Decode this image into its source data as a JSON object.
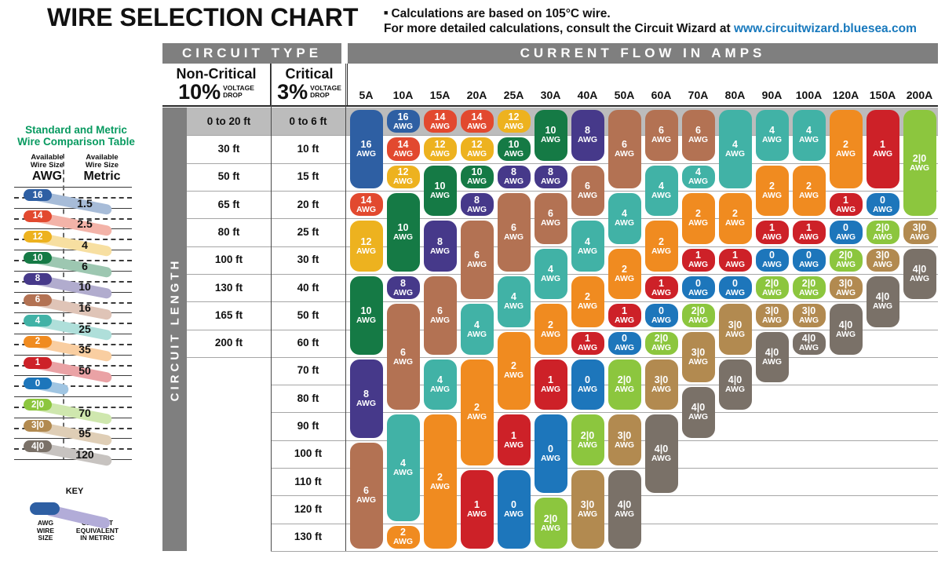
{
  "title": "WIRE SELECTION CHART",
  "notes": {
    "bullet": "■",
    "line1": "Calculations are based on 105°C wire.",
    "line2_prefix": "For more detailed calculations, consult the Circuit Wizard at ",
    "link_text": "www.circuitwizard.bluesea.com",
    "link_color": "#1879bd"
  },
  "headers": {
    "circuit_type": "CIRCUIT TYPE",
    "current_flow": "CURRENT FLOW IN AMPS",
    "circuit_length": "CIRCUIT LENGTH",
    "non_critical": {
      "title": "Non-Critical",
      "pct": "10%",
      "sub": "VOLTAGE\nDROP"
    },
    "critical": {
      "title": "Critical",
      "pct": "3%",
      "sub": "VOLTAGE\nDROP"
    }
  },
  "wire_colors": {
    "16": "#2e5fa3",
    "14": "#e2492f",
    "12": "#edb21f",
    "10": "#157a45",
    "8": "#46398a",
    "6": "#b37253",
    "4": "#41b2a6",
    "2": "#f08b20",
    "1": "#cd2128",
    "0": "#1d76bb",
    "2|0": "#8cc63e",
    "3|0": "#b28a50",
    "4|0": "#7a7168"
  },
  "comparison_table": {
    "title_line1": "Standard and Metric",
    "title_line2": "Wire Comparison Table",
    "left_header": "Available\nWire Size",
    "left_unit": "AWG",
    "right_header": "Available\nWire Size",
    "right_unit": "Metric",
    "rows": [
      {
        "awg": "16",
        "metric": "1.5"
      },
      {
        "awg": "14",
        "metric": "2.5"
      },
      {
        "awg": "12",
        "metric": "4"
      },
      {
        "awg": "10",
        "metric": "6"
      },
      {
        "awg": "8",
        "metric": "10"
      },
      {
        "awg": "6",
        "metric": "16"
      },
      {
        "awg": "4",
        "metric": "25"
      },
      {
        "awg": "2",
        "metric": "35"
      },
      {
        "awg": "1",
        "metric": "50"
      },
      {
        "awg": "0",
        "metric": ""
      },
      {
        "awg": "2|0",
        "metric": "70"
      },
      {
        "awg": "3|0",
        "metric": "95"
      },
      {
        "awg": "4|0",
        "metric": "120"
      }
    ]
  },
  "key": {
    "title": "KEY",
    "awg_label": "AWG\nWIRE\nSIZE",
    "metric_label": "CLOSEST\nEQUIVALENT\nIN METRIC",
    "awg_pill_color": "#2e5fa3",
    "metric_streak_color": "#b2acd8"
  },
  "chart_data": {
    "type": "table",
    "title": "WIRE SELECTION CHART",
    "unit_suffix": "AWG",
    "amp_columns": [
      "5A",
      "10A",
      "15A",
      "20A",
      "25A",
      "30A",
      "40A",
      "50A",
      "60A",
      "70A",
      "80A",
      "90A",
      "100A",
      "120A",
      "150A",
      "200A"
    ],
    "rows_non_critical": [
      "0 to 20 ft",
      "30 ft",
      "50 ft",
      "65 ft",
      "80 ft",
      "100 ft",
      "130 ft",
      "165 ft",
      "200 ft"
    ],
    "rows_critical": [
      "0 to 6 ft",
      "10 ft",
      "15 ft",
      "20 ft",
      "25 ft",
      "30 ft",
      "40 ft",
      "50 ft",
      "60 ft",
      "70 ft",
      "80 ft",
      "90 ft",
      "100 ft",
      "110 ft",
      "120 ft",
      "130 ft"
    ],
    "wire_awg_by_column": [
      {
        "amps": "5A",
        "segments": [
          {
            "awg": "16",
            "from_row": 1,
            "to_row": 3
          },
          {
            "awg": "14",
            "from_row": 4,
            "to_row": 4
          },
          {
            "awg": "12",
            "from_row": 5,
            "to_row": 6
          },
          {
            "awg": "10",
            "from_row": 7,
            "to_row": 9
          },
          {
            "awg": "8",
            "from_row": 10,
            "to_row": 12
          },
          {
            "awg": "6",
            "from_row": 13,
            "to_row": 16
          }
        ]
      },
      {
        "amps": "10A",
        "segments": [
          {
            "awg": "16",
            "from_row": 1,
            "to_row": 1
          },
          {
            "awg": "14",
            "from_row": 2,
            "to_row": 2
          },
          {
            "awg": "12",
            "from_row": 3,
            "to_row": 3
          },
          {
            "awg": "10",
            "from_row": 4,
            "to_row": 6
          },
          {
            "awg": "8",
            "from_row": 7,
            "to_row": 7
          },
          {
            "awg": "6",
            "from_row": 8,
            "to_row": 11
          },
          {
            "awg": "4",
            "from_row": 12,
            "to_row": 15
          },
          {
            "awg": "2",
            "from_row": 16,
            "to_row": 16
          }
        ]
      },
      {
        "amps": "15A",
        "segments": [
          {
            "awg": "14",
            "from_row": 1,
            "to_row": 1
          },
          {
            "awg": "12",
            "from_row": 2,
            "to_row": 2
          },
          {
            "awg": "10",
            "from_row": 3,
            "to_row": 4
          },
          {
            "awg": "8",
            "from_row": 5,
            "to_row": 6
          },
          {
            "awg": "6",
            "from_row": 7,
            "to_row": 9
          },
          {
            "awg": "4",
            "from_row": 10,
            "to_row": 11
          },
          {
            "awg": "2",
            "from_row": 12,
            "to_row": 16
          }
        ]
      },
      {
        "amps": "20A",
        "segments": [
          {
            "awg": "14",
            "from_row": 1,
            "to_row": 1
          },
          {
            "awg": "12",
            "from_row": 2,
            "to_row": 2
          },
          {
            "awg": "10",
            "from_row": 3,
            "to_row": 3
          },
          {
            "awg": "8",
            "from_row": 4,
            "to_row": 4
          },
          {
            "awg": "6",
            "from_row": 5,
            "to_row": 7
          },
          {
            "awg": "4",
            "from_row": 8,
            "to_row": 9
          },
          {
            "awg": "2",
            "from_row": 10,
            "to_row": 13
          },
          {
            "awg": "1",
            "from_row": 14,
            "to_row": 16
          }
        ]
      },
      {
        "amps": "25A",
        "segments": [
          {
            "awg": "12",
            "from_row": 1,
            "to_row": 1
          },
          {
            "awg": "10",
            "from_row": 2,
            "to_row": 2
          },
          {
            "awg": "8",
            "from_row": 3,
            "to_row": 3
          },
          {
            "awg": "6",
            "from_row": 4,
            "to_row": 6
          },
          {
            "awg": "4",
            "from_row": 7,
            "to_row": 8
          },
          {
            "awg": "2",
            "from_row": 9,
            "to_row": 11
          },
          {
            "awg": "1",
            "from_row": 12,
            "to_row": 13
          },
          {
            "awg": "0",
            "from_row": 14,
            "to_row": 16
          }
        ]
      },
      {
        "amps": "30A",
        "segments": [
          {
            "awg": "10",
            "from_row": 1,
            "to_row": 2
          },
          {
            "awg": "8",
            "from_row": 3,
            "to_row": 3
          },
          {
            "awg": "6",
            "from_row": 4,
            "to_row": 5
          },
          {
            "awg": "4",
            "from_row": 6,
            "to_row": 7
          },
          {
            "awg": "2",
            "from_row": 8,
            "to_row": 9
          },
          {
            "awg": "1",
            "from_row": 10,
            "to_row": 11
          },
          {
            "awg": "0",
            "from_row": 12,
            "to_row": 14
          },
          {
            "awg": "2|0",
            "from_row": 15,
            "to_row": 16
          }
        ]
      },
      {
        "amps": "40A",
        "segments": [
          {
            "awg": "8",
            "from_row": 1,
            "to_row": 2
          },
          {
            "awg": "6",
            "from_row": 3,
            "to_row": 4
          },
          {
            "awg": "4",
            "from_row": 5,
            "to_row": 6
          },
          {
            "awg": "2",
            "from_row": 7,
            "to_row": 8
          },
          {
            "awg": "1",
            "from_row": 9,
            "to_row": 9
          },
          {
            "awg": "0",
            "from_row": 10,
            "to_row": 11
          },
          {
            "awg": "2|0",
            "from_row": 12,
            "to_row": 13
          },
          {
            "awg": "3|0",
            "from_row": 14,
            "to_row": 16
          }
        ]
      },
      {
        "amps": "50A",
        "segments": [
          {
            "awg": "6",
            "from_row": 1,
            "to_row": 3
          },
          {
            "awg": "4",
            "from_row": 4,
            "to_row": 5
          },
          {
            "awg": "2",
            "from_row": 6,
            "to_row": 7
          },
          {
            "awg": "1",
            "from_row": 8,
            "to_row": 8
          },
          {
            "awg": "0",
            "from_row": 9,
            "to_row": 9
          },
          {
            "awg": "2|0",
            "from_row": 10,
            "to_row": 11
          },
          {
            "awg": "3|0",
            "from_row": 12,
            "to_row": 13
          },
          {
            "awg": "4|0",
            "from_row": 14,
            "to_row": 16
          }
        ]
      },
      {
        "amps": "60A",
        "segments": [
          {
            "awg": "6",
            "from_row": 1,
            "to_row": 2
          },
          {
            "awg": "4",
            "from_row": 3,
            "to_row": 4
          },
          {
            "awg": "2",
            "from_row": 5,
            "to_row": 6
          },
          {
            "awg": "1",
            "from_row": 7,
            "to_row": 7
          },
          {
            "awg": "0",
            "from_row": 8,
            "to_row": 8
          },
          {
            "awg": "2|0",
            "from_row": 9,
            "to_row": 9
          },
          {
            "awg": "3|0",
            "from_row": 10,
            "to_row": 11
          },
          {
            "awg": "4|0",
            "from_row": 12,
            "to_row": 14
          }
        ]
      },
      {
        "amps": "70A",
        "segments": [
          {
            "awg": "6",
            "from_row": 1,
            "to_row": 2
          },
          {
            "awg": "4",
            "from_row": 3,
            "to_row": 3
          },
          {
            "awg": "2",
            "from_row": 4,
            "to_row": 5
          },
          {
            "awg": "1",
            "from_row": 6,
            "to_row": 6
          },
          {
            "awg": "0",
            "from_row": 7,
            "to_row": 7
          },
          {
            "awg": "2|0",
            "from_row": 8,
            "to_row": 8
          },
          {
            "awg": "3|0",
            "from_row": 9,
            "to_row": 10
          },
          {
            "awg": "4|0",
            "from_row": 11,
            "to_row": 12
          }
        ]
      },
      {
        "amps": "80A",
        "segments": [
          {
            "awg": "4",
            "from_row": 1,
            "to_row": 3
          },
          {
            "awg": "2",
            "from_row": 4,
            "to_row": 5
          },
          {
            "awg": "1",
            "from_row": 6,
            "to_row": 6
          },
          {
            "awg": "0",
            "from_row": 7,
            "to_row": 7
          },
          {
            "awg": "3|0",
            "from_row": 8,
            "to_row": 9
          },
          {
            "awg": "4|0",
            "from_row": 10,
            "to_row": 11
          }
        ]
      },
      {
        "amps": "90A",
        "segments": [
          {
            "awg": "4",
            "from_row": 1,
            "to_row": 2
          },
          {
            "awg": "2",
            "from_row": 3,
            "to_row": 4
          },
          {
            "awg": "1",
            "from_row": 5,
            "to_row": 5
          },
          {
            "awg": "0",
            "from_row": 6,
            "to_row": 6
          },
          {
            "awg": "2|0",
            "from_row": 7,
            "to_row": 7
          },
          {
            "awg": "3|0",
            "from_row": 8,
            "to_row": 8
          },
          {
            "awg": "4|0",
            "from_row": 9,
            "to_row": 10
          }
        ]
      },
      {
        "amps": "100A",
        "segments": [
          {
            "awg": "4",
            "from_row": 1,
            "to_row": 2
          },
          {
            "awg": "2",
            "from_row": 3,
            "to_row": 4
          },
          {
            "awg": "1",
            "from_row": 5,
            "to_row": 5
          },
          {
            "awg": "0",
            "from_row": 6,
            "to_row": 6
          },
          {
            "awg": "2|0",
            "from_row": 7,
            "to_row": 7
          },
          {
            "awg": "3|0",
            "from_row": 8,
            "to_row": 8
          },
          {
            "awg": "4|0",
            "from_row": 9,
            "to_row": 9
          }
        ]
      },
      {
        "amps": "120A",
        "segments": [
          {
            "awg": "2",
            "from_row": 1,
            "to_row": 3
          },
          {
            "awg": "1",
            "from_row": 4,
            "to_row": 4
          },
          {
            "awg": "0",
            "from_row": 5,
            "to_row": 5
          },
          {
            "awg": "2|0",
            "from_row": 6,
            "to_row": 6
          },
          {
            "awg": "3|0",
            "from_row": 7,
            "to_row": 7
          },
          {
            "awg": "4|0",
            "from_row": 8,
            "to_row": 9
          }
        ]
      },
      {
        "amps": "150A",
        "segments": [
          {
            "awg": "1",
            "from_row": 1,
            "to_row": 3
          },
          {
            "awg": "0",
            "from_row": 4,
            "to_row": 4
          },
          {
            "awg": "2|0",
            "from_row": 5,
            "to_row": 5
          },
          {
            "awg": "3|0",
            "from_row": 6,
            "to_row": 6
          },
          {
            "awg": "4|0",
            "from_row": 7,
            "to_row": 8
          }
        ]
      },
      {
        "amps": "200A",
        "segments": [
          {
            "awg": "2|0",
            "from_row": 1,
            "to_row": 4
          },
          {
            "awg": "3|0",
            "from_row": 5,
            "to_row": 5
          },
          {
            "awg": "4|0",
            "from_row": 6,
            "to_row": 7
          }
        ]
      }
    ]
  }
}
